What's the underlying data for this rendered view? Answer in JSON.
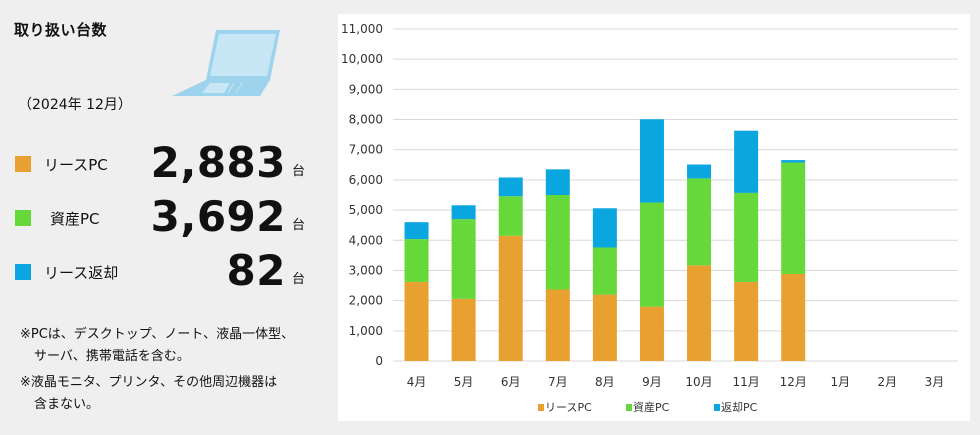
{
  "panel": {
    "title": "取り扱い台数",
    "period": "（2024年 12月）",
    "kpis": [
      {
        "label": "リースPC",
        "value": "2,883",
        "unit": "台",
        "color": "#e8a030"
      },
      {
        "label": "資産PC",
        "value": "3,692",
        "unit": "台",
        "color": "#66d83a"
      },
      {
        "label": "リース返却",
        "value": "82",
        "unit": "台",
        "color": "#0aa6e0"
      }
    ],
    "notes": [
      "※PCは、デスクトップ、ノート、液晶一体型、",
      "サーバ、携帯電話を含む。",
      "※液晶モニタ、プリンタ、その他周辺機器は",
      "含まない。"
    ]
  },
  "chart_data": {
    "type": "bar",
    "stacked": true,
    "categories": [
      "4月",
      "5月",
      "6月",
      "7月",
      "8月",
      "9月",
      "10月",
      "11月",
      "12月",
      "1月",
      "2月",
      "3月"
    ],
    "series": [
      {
        "name": "リースPC",
        "color": "#e8a030",
        "values": [
          2620,
          2060,
          4150,
          2370,
          2200,
          1800,
          3170,
          2620,
          2883,
          null,
          null,
          null
        ]
      },
      {
        "name": "資産PC",
        "color": "#66d83a",
        "values": [
          1420,
          2640,
          1310,
          3130,
          1560,
          3450,
          2880,
          2950,
          3692,
          null,
          null,
          null
        ]
      },
      {
        "name": "返却PC",
        "color": "#0aa6e0",
        "values": [
          560,
          460,
          620,
          850,
          1300,
          2760,
          460,
          2060,
          82,
          null,
          null,
          null
        ]
      }
    ],
    "yticks": [
      "0",
      "1,000",
      "2,000",
      "3,000",
      "4,000",
      "5,000",
      "6,000",
      "7,000",
      "8,000",
      "9,000",
      "10,000",
      "11,000"
    ],
    "ylim": [
      0,
      11000
    ],
    "grid": true,
    "legend_position": "bottom",
    "title": "",
    "xlabel": "",
    "ylabel": ""
  }
}
